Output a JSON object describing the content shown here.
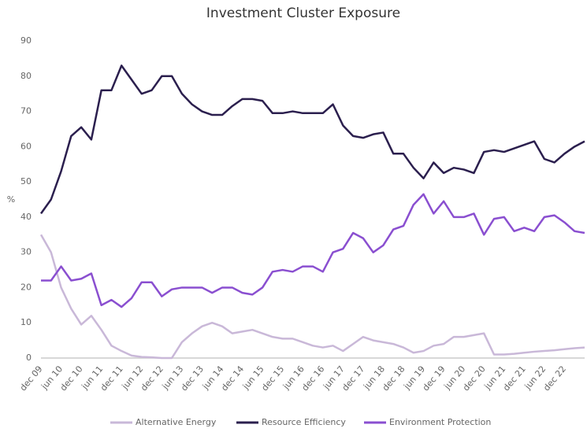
{
  "chart_data": {
    "type": "line",
    "title": "Investment Cluster Exposure",
    "y_label": "%",
    "categories": [
      "dec 09",
      null,
      "jun 10",
      null,
      "dec 10",
      null,
      "jun 11",
      null,
      "dec 11",
      null,
      "jun 12",
      null,
      "dec 12",
      null,
      "jun 13",
      null,
      "dec 13",
      null,
      "jun 14",
      null,
      "dec 14",
      null,
      "jun 15",
      null,
      "dec 15",
      null,
      "jun 16",
      null,
      "dec 16",
      null,
      "jun 17",
      null,
      "dec 17",
      null,
      "jun 18",
      null,
      "dec 18",
      null,
      "jun 19",
      null,
      "dec 19",
      null,
      "jun 20",
      null,
      "dec 20",
      null,
      "jun 21",
      null,
      "dec 21",
      null,
      "jun 22",
      null,
      "dec 22",
      null,
      null
    ],
    "series": [
      {
        "name": "Alternative Energy",
        "color": "#c9b8d8",
        "values": [
          35,
          30,
          20,
          14,
          9.5,
          12,
          8,
          3.5,
          2,
          0.7,
          0.3,
          0.2,
          0,
          0,
          4.5,
          7,
          9,
          10,
          9,
          7,
          7.5,
          8,
          7,
          6,
          5.5,
          5.5,
          4.5,
          3.5,
          3,
          3.5,
          2,
          4,
          6,
          5,
          4.5,
          4,
          3,
          1.5,
          2,
          3.5,
          4,
          6,
          6,
          6.5,
          7,
          1,
          1,
          1.2,
          1.5,
          1.8,
          2,
          2.2,
          2.5,
          2.8,
          3
        ]
      },
      {
        "name": "Resource Efficiency",
        "color": "#2b1f4e",
        "values": [
          41,
          45,
          53,
          63,
          65.5,
          62,
          76,
          76,
          83,
          79,
          75,
          76,
          80,
          80,
          75,
          72,
          70,
          69,
          69,
          71.5,
          73.5,
          73.5,
          73,
          69.5,
          69.5,
          70,
          69.5,
          69.5,
          69.5,
          72,
          66,
          63,
          62.5,
          63.5,
          64,
          58,
          58,
          54,
          51,
          55.5,
          52.5,
          54,
          53.5,
          52.5,
          58.5,
          59,
          58.5,
          59.5,
          60.5,
          61.5,
          56.5,
          55.5,
          58,
          60,
          61.5
        ]
      },
      {
        "name": "Environment Protection",
        "color": "#8a4fd0",
        "values": [
          22,
          22,
          26,
          22,
          22.5,
          24,
          15,
          16.5,
          14.5,
          17,
          21.5,
          21.5,
          17.5,
          19.5,
          20,
          20,
          20,
          18.5,
          20,
          20,
          18.5,
          18,
          20,
          24.5,
          25,
          24.5,
          26,
          26,
          24.5,
          30,
          31,
          35.5,
          34,
          30,
          32,
          36.5,
          37.5,
          43.5,
          46.5,
          41,
          44.5,
          40,
          40,
          41,
          35,
          39.5,
          40,
          36,
          37,
          36,
          40,
          40.5,
          38.5,
          36,
          35.5
        ]
      }
    ],
    "ylim": [
      0,
      90
    ],
    "yticks": [
      0,
      10,
      20,
      30,
      40,
      50,
      60,
      70,
      80,
      90
    ],
    "grid": false,
    "legend": "bottom"
  }
}
